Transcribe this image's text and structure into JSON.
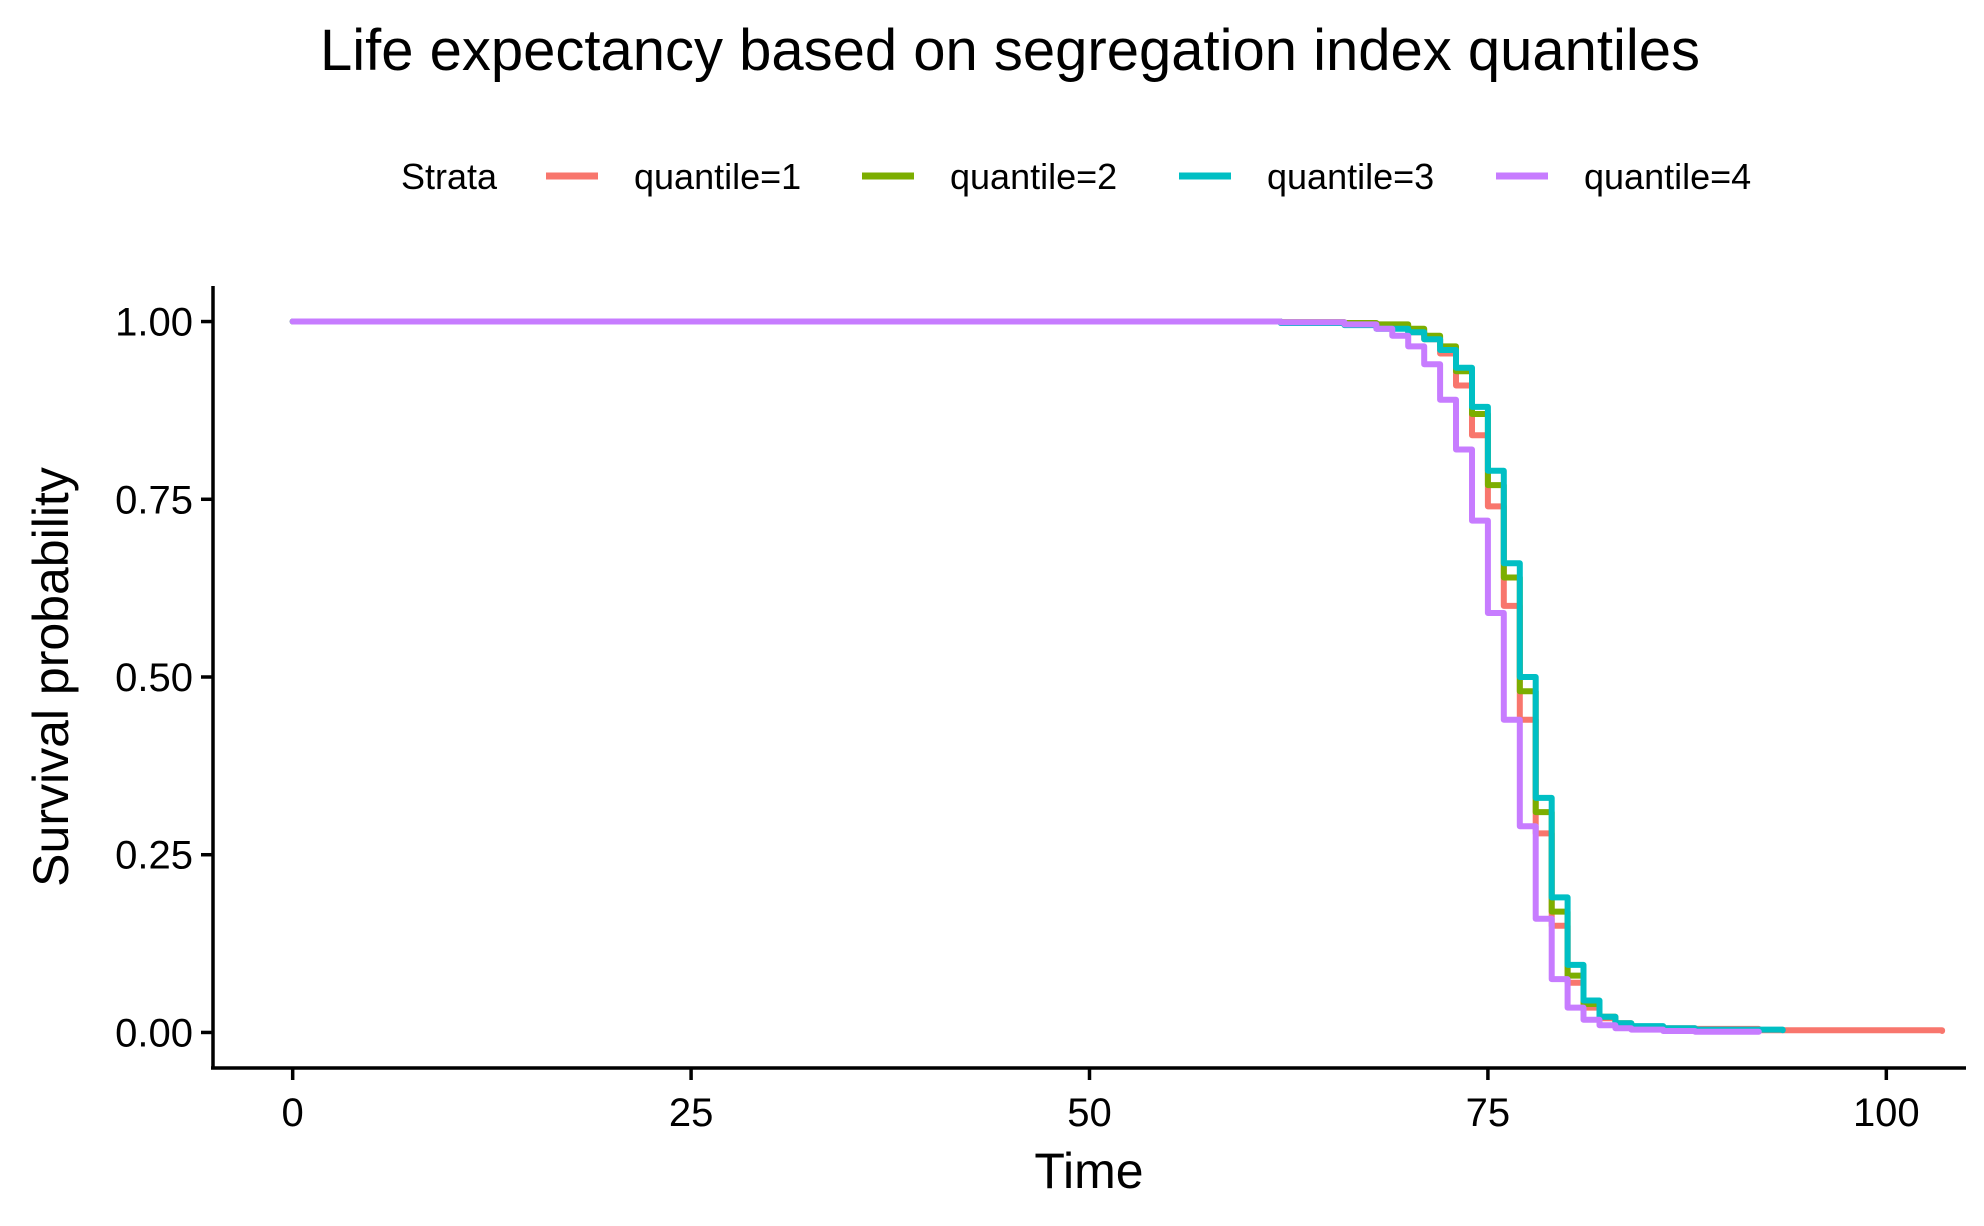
{
  "chart_data": {
    "type": "line",
    "title": "Life expectancy based on segregation index quantiles",
    "xlabel": "Time",
    "ylabel": "Survival probability",
    "xlim": [
      -5,
      105
    ],
    "ylim": [
      -0.05,
      1.05
    ],
    "x_ticks": [
      0,
      25,
      50,
      75,
      100
    ],
    "x_tick_labels": [
      "0",
      "25",
      "50",
      "75",
      "100"
    ],
    "y_ticks": [
      0,
      0.25,
      0.5,
      0.75,
      1
    ],
    "y_tick_labels": [
      "0.00",
      "0.25",
      "0.50",
      "0.75",
      "1.00"
    ],
    "grid": false,
    "step": true,
    "legend": {
      "title": "Strata",
      "position": "top"
    },
    "series": [
      {
        "name": "quantile=1",
        "color": "#F8766D",
        "x": [
          0,
          62,
          66,
          68,
          70,
          71,
          72,
          73,
          74,
          75,
          76,
          77,
          78,
          79,
          80,
          81,
          82,
          83,
          84,
          86,
          88,
          92,
          103.5
        ],
        "y": [
          1,
          0.999,
          0.997,
          0.993,
          0.985,
          0.975,
          0.955,
          0.91,
          0.84,
          0.74,
          0.6,
          0.44,
          0.28,
          0.15,
          0.07,
          0.035,
          0.02,
          0.012,
          0.008,
          0.006,
          0.005,
          0.003,
          0.002
        ]
      },
      {
        "name": "quantile=2",
        "color": "#7CAE00",
        "x": [
          0,
          62,
          66,
          68,
          70,
          71,
          72,
          73,
          74,
          75,
          76,
          77,
          78,
          79,
          80,
          81,
          82,
          83,
          84,
          86,
          88,
          92
        ],
        "y": [
          1,
          0.999,
          0.998,
          0.996,
          0.99,
          0.98,
          0.965,
          0.93,
          0.87,
          0.77,
          0.64,
          0.48,
          0.31,
          0.17,
          0.08,
          0.04,
          0.022,
          0.013,
          0.008,
          0.005,
          0.003,
          0.002
        ]
      },
      {
        "name": "quantile=3",
        "color": "#00BFC4",
        "x": [
          0,
          62,
          66,
          68,
          70,
          71,
          72,
          73,
          74,
          75,
          76,
          77,
          78,
          79,
          80,
          81,
          82,
          83,
          84,
          86,
          88,
          93.5
        ],
        "y": [
          1,
          0.998,
          0.995,
          0.99,
          0.985,
          0.975,
          0.96,
          0.935,
          0.88,
          0.79,
          0.66,
          0.5,
          0.33,
          0.19,
          0.095,
          0.045,
          0.022,
          0.013,
          0.009,
          0.006,
          0.004,
          0.003
        ]
      },
      {
        "name": "quantile=4",
        "color": "#C77CFF",
        "x": [
          0,
          62,
          66,
          68,
          69,
          70,
          71,
          72,
          73,
          74,
          75,
          76,
          77,
          78,
          79,
          80,
          81,
          82,
          83,
          84,
          86,
          88,
          92
        ],
        "y": [
          1,
          0.999,
          0.996,
          0.99,
          0.98,
          0.965,
          0.94,
          0.89,
          0.82,
          0.72,
          0.59,
          0.44,
          0.29,
          0.16,
          0.075,
          0.035,
          0.018,
          0.01,
          0.006,
          0.004,
          0.002,
          0.001,
          0.001
        ]
      }
    ]
  }
}
